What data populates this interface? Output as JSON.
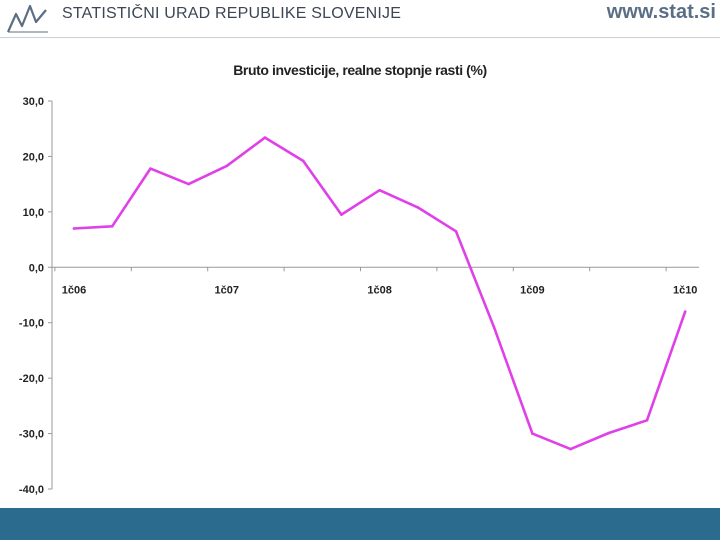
{
  "header": {
    "org_name": "STATISTIČNI URAD REPUBLIKE SLOVENIJE",
    "url": "www.stat.si",
    "logo_icon": "sursi-logo-icon"
  },
  "colors": {
    "line": "#e040e8",
    "footer": "#2a6b8e",
    "url_text": "#5a6f86"
  },
  "chart_data": {
    "type": "line",
    "title": "Bruto investicije, realne stopnje rasti (%)",
    "xlabel": "",
    "ylabel": "",
    "ylim": [
      -40,
      30
    ],
    "y_ticks": [
      "30,0",
      "20,0",
      "10,0",
      "0,0",
      "-10,0",
      "-20,0",
      "-30,0",
      "-40,0"
    ],
    "y_tick_values": [
      30,
      20,
      10,
      0,
      -10,
      -20,
      -30,
      -40
    ],
    "x_tick_labels": [
      "1č06",
      "1č07",
      "1č08",
      "1č09",
      "1č10"
    ],
    "x_tick_quarter_index": [
      0,
      4,
      8,
      12,
      16
    ],
    "grid": false,
    "series": [
      {
        "values": [
          7.0,
          7.4,
          17.8,
          15.0,
          18.3,
          23.4,
          19.2,
          9.5,
          13.9,
          10.8,
          6.5,
          -10.9,
          -30.0,
          -32.8,
          -29.9,
          -27.6,
          -8.0
        ]
      }
    ]
  }
}
